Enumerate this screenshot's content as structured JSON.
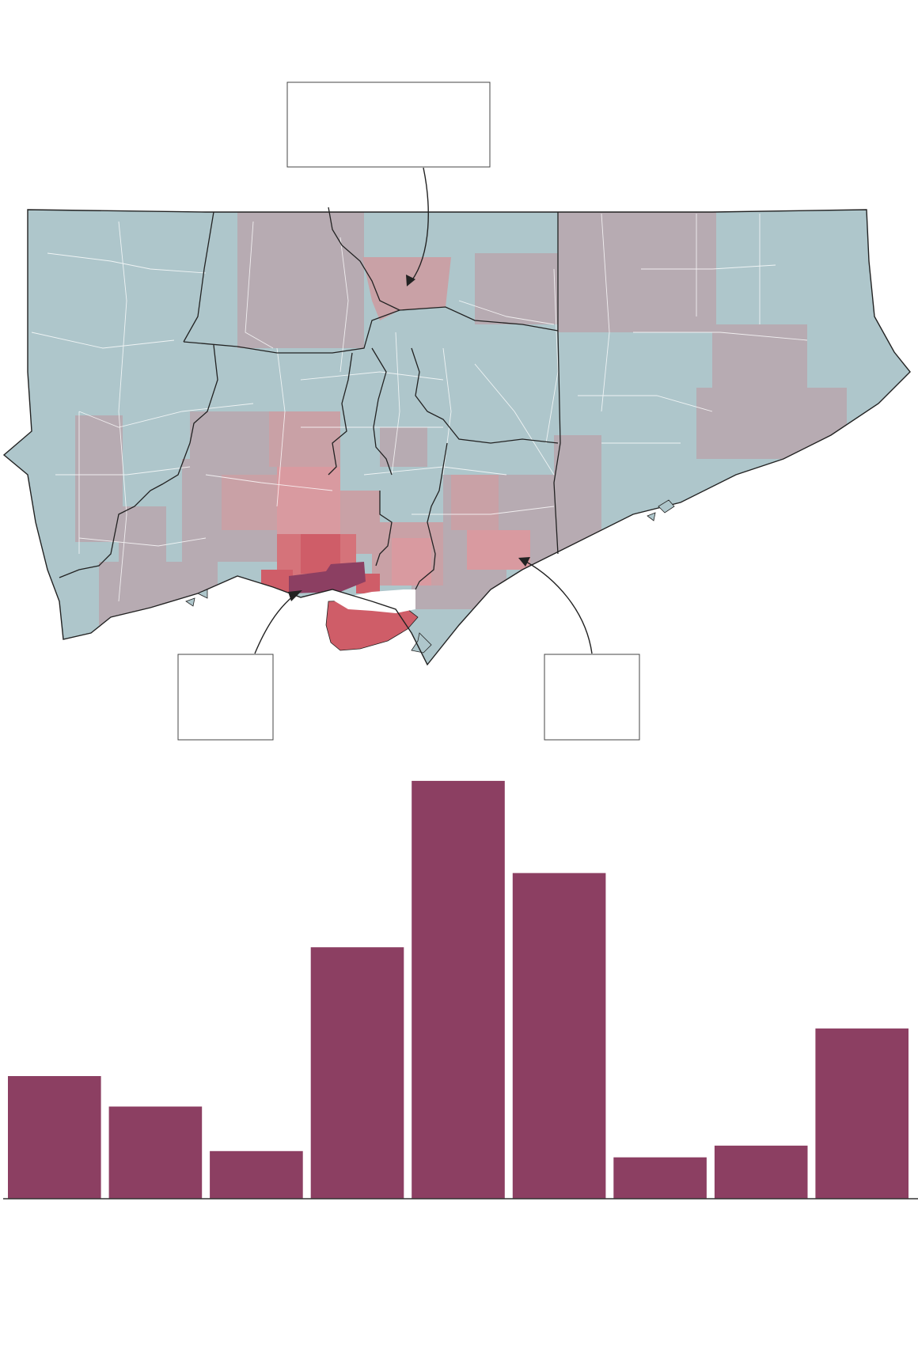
{
  "colors": {
    "low": "#aec6cb",
    "mid": "#b7abb2",
    "pink_light": "#c9a1a6",
    "pink": "#d99aa0",
    "red": "#d5737a",
    "red_strong": "#cf5d68",
    "dark": "#8c3f62",
    "boundary": "#222222",
    "bar": "#8c3f62",
    "axis": "#333333"
  },
  "callouts": [
    {
      "id": "north",
      "text": ""
    },
    {
      "id": "downtown",
      "text": ""
    },
    {
      "id": "east",
      "text": ""
    }
  ],
  "chart_data": {
    "type": "bar",
    "categories": [
      "",
      "",
      "",
      "",
      "",
      "",
      "",
      "",
      ""
    ],
    "values": [
      157,
      118,
      61,
      322,
      535,
      417,
      53,
      68,
      218
    ],
    "ylim": [
      0,
      540
    ],
    "grid": false
  }
}
